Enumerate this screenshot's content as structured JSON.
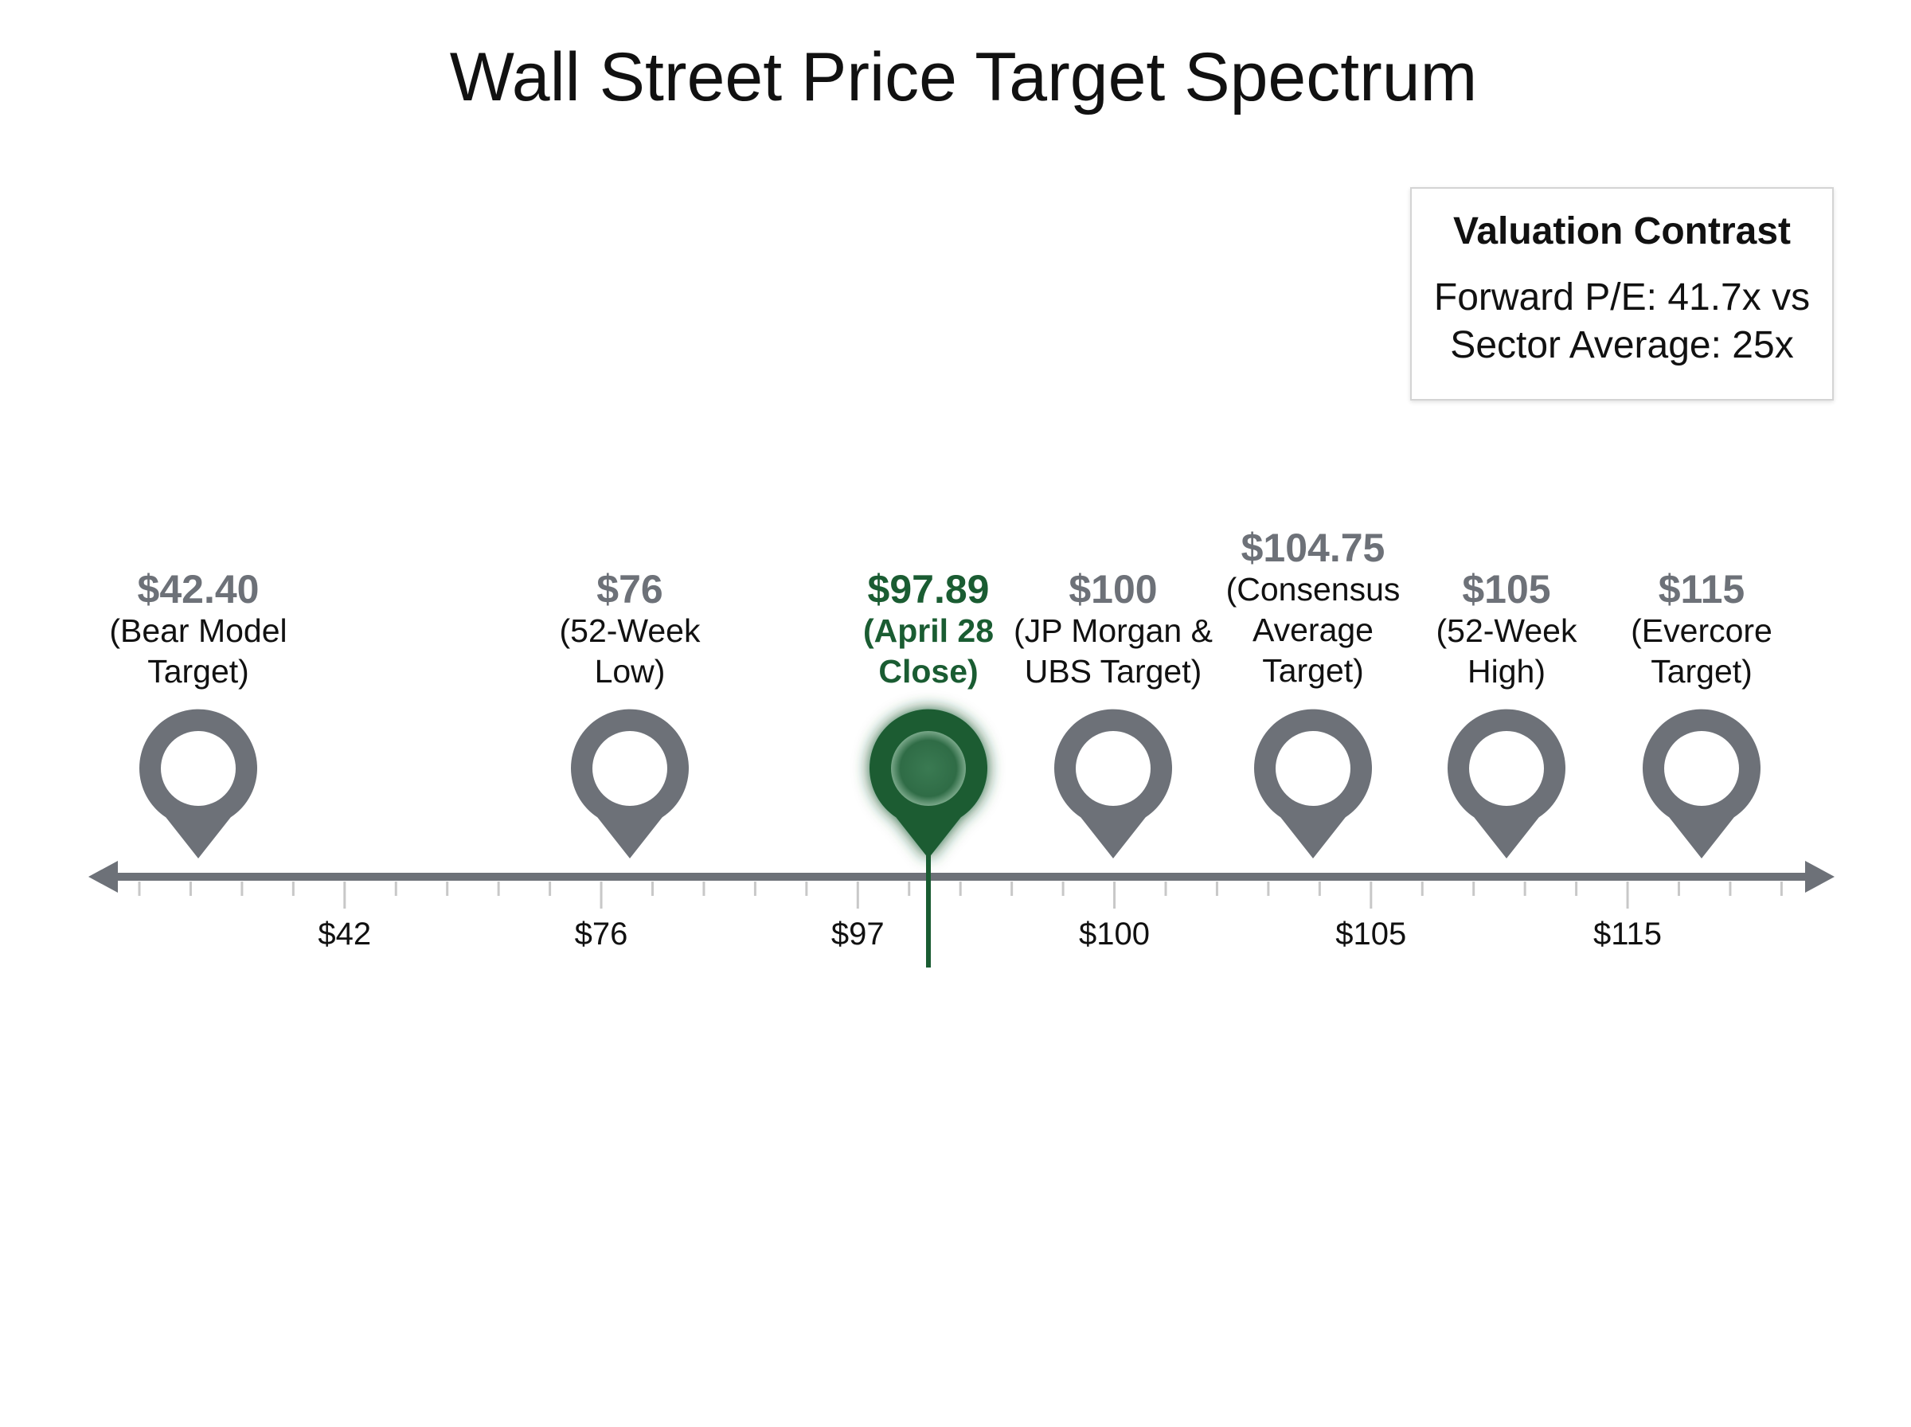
{
  "title": "Wall Street Price Target Spectrum",
  "valuation_box": {
    "heading": "Valuation Contrast",
    "line1": "Forward P/E: 41.7x vs",
    "line2": "Sector Average: 25x"
  },
  "colors": {
    "marker": "#6d7178",
    "highlight": "#1a5c32",
    "axis": "#6d7178",
    "tick": "#c8c8c8"
  },
  "chart_data": {
    "type": "scatter",
    "title": "Wall Street Price Target Spectrum",
    "axis_tick_labels": [
      "$42",
      "$76",
      "$97",
      "$100",
      "$105",
      "$115"
    ],
    "points": [
      {
        "value": 42.4,
        "price_label": "$42.40",
        "desc": [
          "(Bear Model",
          "Target)"
        ],
        "highlight": false
      },
      {
        "value": 76,
        "price_label": "$76",
        "desc": [
          "(52-Week",
          "Low)"
        ],
        "highlight": false
      },
      {
        "value": 97.89,
        "price_label": "$97.89",
        "desc": [
          "(April 28",
          "Close)"
        ],
        "highlight": true
      },
      {
        "value": 100,
        "price_label": "$100",
        "desc": [
          "(JP Morgan &",
          "UBS Target)"
        ],
        "highlight": false
      },
      {
        "value": 104.75,
        "price_label": "$104.75",
        "desc": [
          "(Consensus",
          "Average",
          "Target)"
        ],
        "highlight": false
      },
      {
        "value": 105,
        "price_label": "$105",
        "desc": [
          "(52-Week",
          "High)"
        ],
        "highlight": false
      },
      {
        "value": 115,
        "price_label": "$115",
        "desc": [
          "(Evercore",
          "Target)"
        ],
        "highlight": false
      }
    ]
  }
}
